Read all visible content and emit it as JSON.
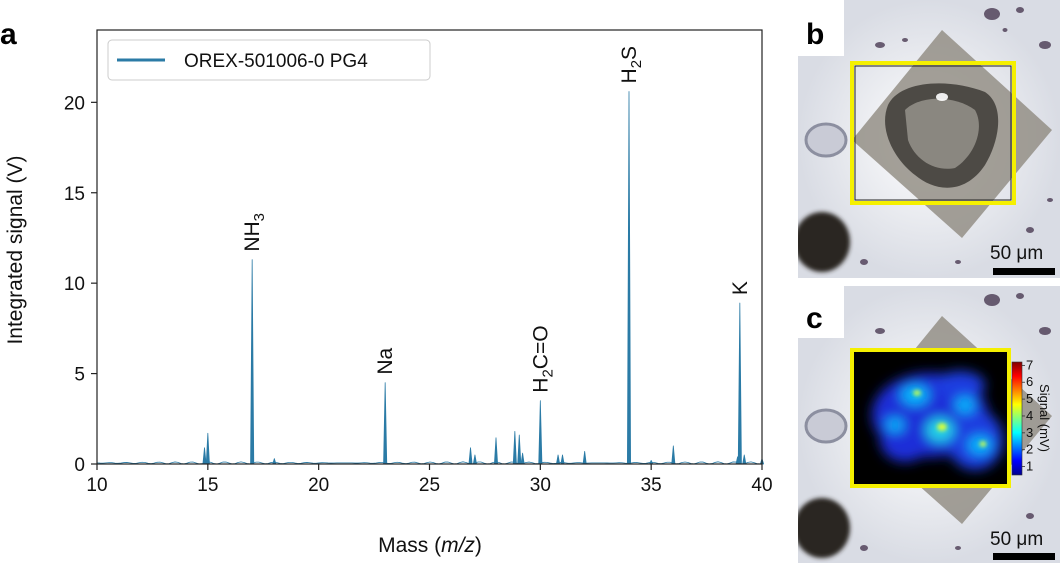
{
  "panels": {
    "a": "a",
    "b": "b",
    "c": "c"
  },
  "chart_data": {
    "type": "line",
    "xlabel_prefix": "Mass (",
    "xlabel_italic": "m/z",
    "xlabel_suffix": ")",
    "ylabel": "Integrated signal (V)",
    "xlim": [
      10,
      40
    ],
    "ylim": [
      0,
      24
    ],
    "xticks": [
      10,
      15,
      20,
      25,
      30,
      35,
      40
    ],
    "yticks": [
      0,
      5,
      10,
      15,
      20
    ],
    "legend": {
      "position": "top-left",
      "entries": [
        "OREX-501006-0 PG4"
      ]
    },
    "series": [
      {
        "name": "OREX-501006-0 PG4",
        "color": "#2b7ba6",
        "peaks": [
          {
            "x": 14.85,
            "y": 0.9
          },
          {
            "x": 15.0,
            "y": 1.7
          },
          {
            "x": 17.0,
            "y": 11.3
          },
          {
            "x": 18.0,
            "y": 0.3
          },
          {
            "x": 23.0,
            "y": 4.5
          },
          {
            "x": 26.85,
            "y": 0.9
          },
          {
            "x": 27.05,
            "y": 0.5
          },
          {
            "x": 28.0,
            "y": 1.45
          },
          {
            "x": 28.85,
            "y": 1.8
          },
          {
            "x": 29.05,
            "y": 1.6
          },
          {
            "x": 29.2,
            "y": 0.6
          },
          {
            "x": 30.0,
            "y": 3.5
          },
          {
            "x": 30.8,
            "y": 0.5
          },
          {
            "x": 31.0,
            "y": 0.5
          },
          {
            "x": 32.0,
            "y": 0.7
          },
          {
            "x": 34.0,
            "y": 20.6
          },
          {
            "x": 35.0,
            "y": 0.2
          },
          {
            "x": 36.0,
            "y": 1.0
          },
          {
            "x": 38.9,
            "y": 0.4
          },
          {
            "x": 39.0,
            "y": 8.9
          },
          {
            "x": 39.2,
            "y": 0.5
          },
          {
            "x": 40.0,
            "y": 0.3
          }
        ]
      }
    ],
    "annotations": [
      {
        "main": "NH",
        "sub": "3",
        "after": "",
        "x": 17.0,
        "y": 11.3
      },
      {
        "main": "Na",
        "sub": "",
        "after": "",
        "x": 23.0,
        "y": 4.5
      },
      {
        "main": "H",
        "sub": "2",
        "after": "C=O",
        "x": 30.0,
        "y": 3.5
      },
      {
        "main": "H",
        "sub": "2",
        "after": "S",
        "x": 34.0,
        "y": 20.6
      },
      {
        "main": "K",
        "sub": "",
        "after": "",
        "x": 39.0,
        "y": 8.9
      }
    ]
  },
  "image_b": {
    "scale_bar": "50 μm"
  },
  "image_c": {
    "scale_bar": "50 μm",
    "colorbar_label": "Signal (mV)",
    "colorbar_ticks": [
      1,
      2,
      3,
      4,
      5,
      6,
      7
    ],
    "colorbar_range": [
      0.5,
      7.2
    ]
  }
}
